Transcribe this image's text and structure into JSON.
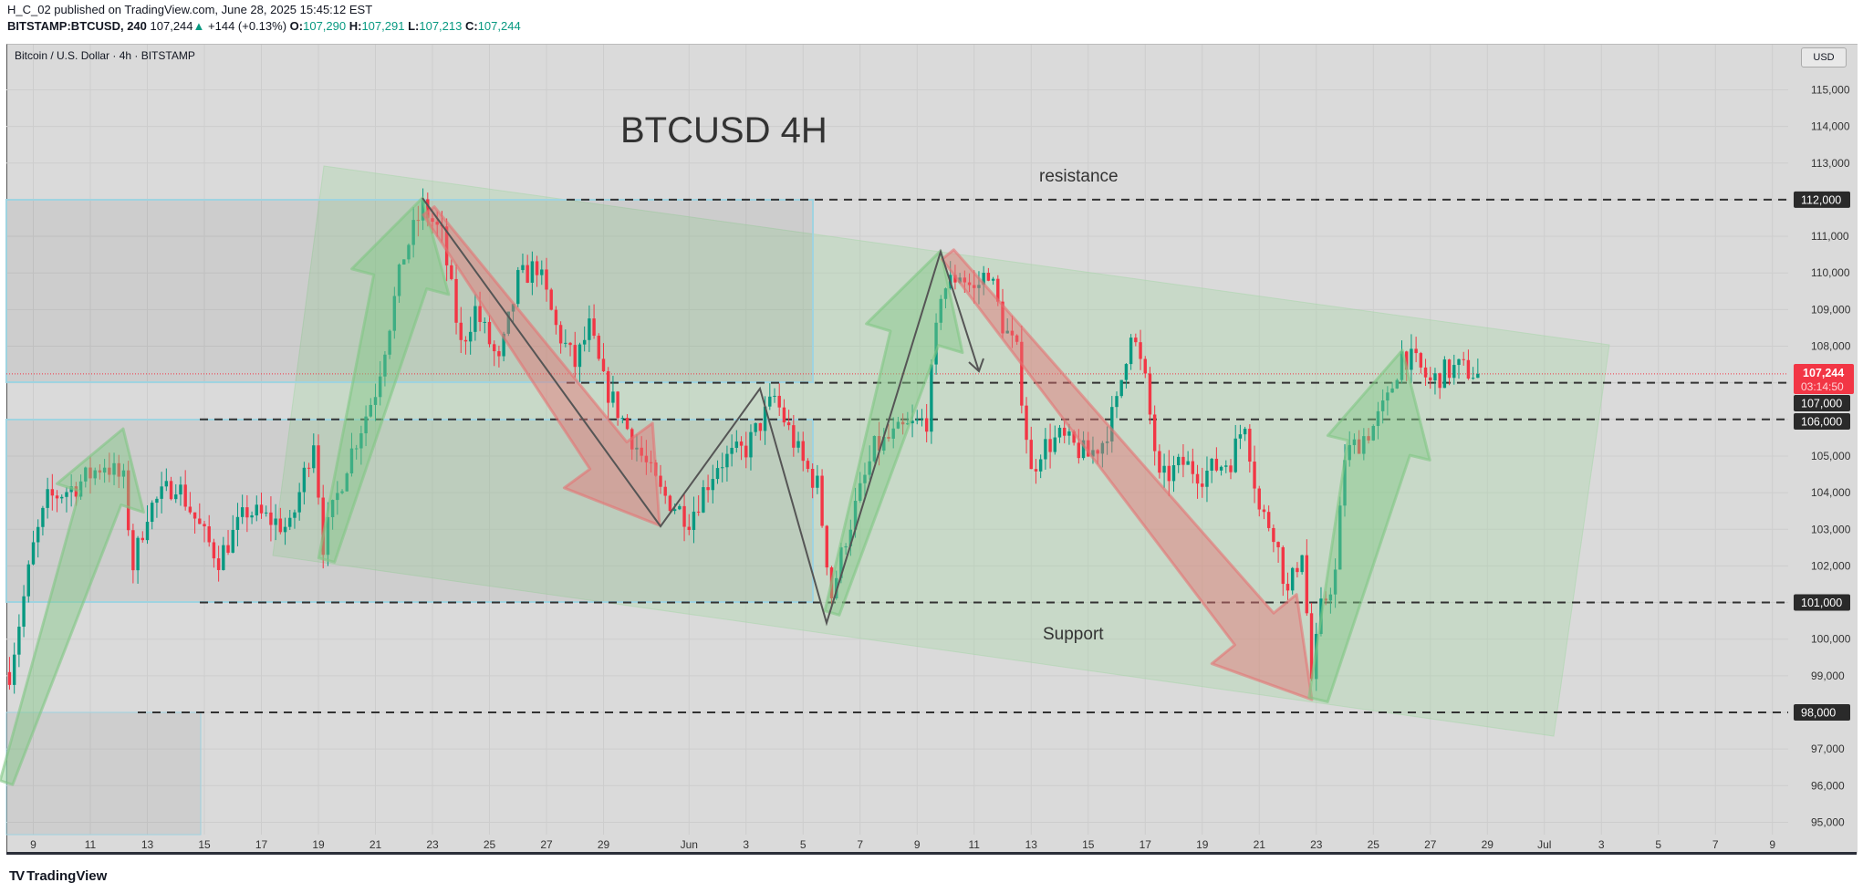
{
  "header": {
    "publisher_line": "H_C_02 published on TradingView.com, June 28, 2025 15:45:12 EST",
    "symbol": "BITSTAMP:BTCUSD, 240",
    "price": "107,244",
    "change": "+144 (+0.13%)",
    "o_label": "O:",
    "o": "107,290",
    "h_label": "H:",
    "h": "107,291",
    "l_label": "L:",
    "l": "107,213",
    "c_label": "C:",
    "c": "107,244"
  },
  "chart": {
    "legend_title": "Bitcoin / U.S. Dollar · 4h · BITSTAMP",
    "annotation_title": "BTCUSD 4H",
    "resistance_label": "resistance",
    "support_label": "Support",
    "currency_button": "USD",
    "current_price": "107,244",
    "countdown": "03:14:50"
  },
  "price_axis": {
    "ticks": [
      "115,000",
      "114,000",
      "113,000",
      "112,000",
      "111,000",
      "110,000",
      "109,000",
      "108,000",
      "107,000",
      "106,000",
      "105,000",
      "104,000",
      "103,000",
      "102,000",
      "101,000",
      "100,000",
      "99,000",
      "98,000",
      "97,000",
      "96,000",
      "95,000"
    ],
    "level_labels": [
      "112,000",
      "107,000",
      "106,000",
      "101,000",
      "98,000"
    ]
  },
  "time_axis": [
    {
      "label": "9",
      "date": "2025-05-09"
    },
    {
      "label": "11",
      "date": "2025-05-11"
    },
    {
      "label": "13",
      "date": "2025-05-13"
    },
    {
      "label": "15",
      "date": "2025-05-15"
    },
    {
      "label": "17",
      "date": "2025-05-17"
    },
    {
      "label": "19",
      "date": "2025-05-19"
    },
    {
      "label": "21",
      "date": "2025-05-21"
    },
    {
      "label": "23",
      "date": "2025-05-23"
    },
    {
      "label": "25",
      "date": "2025-05-25"
    },
    {
      "label": "27",
      "date": "2025-05-27"
    },
    {
      "label": "29",
      "date": "2025-05-29"
    },
    {
      "label": "Jun",
      "date": "2025-06-01"
    },
    {
      "label": "3",
      "date": "2025-06-03"
    },
    {
      "label": "5",
      "date": "2025-06-05"
    },
    {
      "label": "7",
      "date": "2025-06-07"
    },
    {
      "label": "9",
      "date": "2025-06-09"
    },
    {
      "label": "11",
      "date": "2025-06-11"
    },
    {
      "label": "13",
      "date": "2025-06-13"
    },
    {
      "label": "15",
      "date": "2025-06-15"
    },
    {
      "label": "17",
      "date": "2025-06-17"
    },
    {
      "label": "19",
      "date": "2025-06-19"
    },
    {
      "label": "21",
      "date": "2025-06-21"
    },
    {
      "label": "23",
      "date": "2025-06-23"
    },
    {
      "label": "25",
      "date": "2025-06-25"
    },
    {
      "label": "27",
      "date": "2025-06-27"
    },
    {
      "label": "29",
      "date": "2025-06-29"
    },
    {
      "label": "Jul",
      "date": "2025-07-01"
    },
    {
      "label": "3",
      "date": "2025-07-03"
    },
    {
      "label": "5",
      "date": "2025-07-05"
    },
    {
      "label": "7",
      "date": "2025-07-07"
    },
    {
      "label": "9",
      "date": "2025-07-09"
    }
  ],
  "colors": {
    "up": "#089981",
    "down": "#f23645",
    "background": "#dadada",
    "level_label_bg": "#2a2a2a",
    "channel": "#a5d6a7",
    "up_arrow": "#81c784",
    "down_arrow": "#e57373"
  },
  "footer": {
    "logo_mark": "TV",
    "logo_text": "TradingView"
  },
  "chart_data": {
    "type": "candlestick",
    "interval": "4h",
    "ylim": [
      95000,
      115000
    ],
    "current_price": 107244,
    "levels": [
      112000,
      107000,
      106000,
      101000,
      98000
    ],
    "price_path": [
      [
        "2025-05-08T04",
        99100
      ],
      [
        "2025-05-09T00",
        102500
      ],
      [
        "2025-05-09T12",
        103800
      ],
      [
        "2025-05-10T12",
        104200
      ],
      [
        "2025-05-11T12",
        104800
      ],
      [
        "2025-05-12T04",
        104300
      ],
      [
        "2025-05-12T12",
        102000
      ],
      [
        "2025-05-13T00",
        103500
      ],
      [
        "2025-05-14T00",
        104300
      ],
      [
        "2025-05-15T00",
        102800
      ],
      [
        "2025-05-15T12",
        102200
      ],
      [
        "2025-05-16T12",
        103500
      ],
      [
        "2025-05-17T12",
        103200
      ],
      [
        "2025-05-18T00",
        103000
      ],
      [
        "2025-05-18T20",
        105500
      ],
      [
        "2025-05-19T04",
        102600
      ],
      [
        "2025-05-20T00",
        104800
      ],
      [
        "2025-05-21T00",
        106800
      ],
      [
        "2025-05-22T00",
        110500
      ],
      [
        "2025-05-22T16",
        111800
      ],
      [
        "2025-05-23T08",
        111000
      ],
      [
        "2025-05-24T00",
        108000
      ],
      [
        "2025-05-24T12",
        109000
      ],
      [
        "2025-05-25T08",
        107500
      ],
      [
        "2025-05-26T00",
        109800
      ],
      [
        "2025-05-26T16",
        110200
      ],
      [
        "2025-05-27T08",
        108500
      ],
      [
        "2025-05-28T00",
        107500
      ],
      [
        "2025-05-28T12",
        108500
      ],
      [
        "2025-05-29T00",
        107000
      ],
      [
        "2025-05-30T00",
        105500
      ],
      [
        "2025-05-31T00",
        104000
      ],
      [
        "2025-06-01T00",
        103300
      ],
      [
        "2025-06-02T00",
        104800
      ],
      [
        "2025-06-03T00",
        105200
      ],
      [
        "2025-06-04T00",
        106600
      ],
      [
        "2025-06-05T00",
        104800
      ],
      [
        "2025-06-05T12",
        104200
      ],
      [
        "2025-06-06T00",
        101200
      ],
      [
        "2025-06-06T12",
        102800
      ],
      [
        "2025-06-07T12",
        105200
      ],
      [
        "2025-06-08T12",
        105700
      ],
      [
        "2025-06-09T08",
        106000
      ],
      [
        "2025-06-09T20",
        109500
      ],
      [
        "2025-06-10T12",
        110000
      ],
      [
        "2025-06-11T00",
        109500
      ],
      [
        "2025-06-11T12",
        110100
      ],
      [
        "2025-06-12T00",
        108600
      ],
      [
        "2025-06-12T12",
        107800
      ],
      [
        "2025-06-13T00",
        104500
      ],
      [
        "2025-06-13T08",
        105200
      ],
      [
        "2025-06-14T00",
        105500
      ],
      [
        "2025-06-15T00",
        105000
      ],
      [
        "2025-06-15T12",
        105400
      ],
      [
        "2025-06-16T00",
        106400
      ],
      [
        "2025-06-16T12",
        108500
      ],
      [
        "2025-06-17T00",
        107000
      ],
      [
        "2025-06-17T12",
        104300
      ],
      [
        "2025-06-18T08",
        104800
      ],
      [
        "2025-06-19T00",
        104500
      ],
      [
        "2025-06-20T00",
        104900
      ],
      [
        "2025-06-20T12",
        106000
      ],
      [
        "2025-06-21T00",
        103500
      ],
      [
        "2025-06-21T12",
        103000
      ],
      [
        "2025-06-22T00",
        101200
      ],
      [
        "2025-06-22T12",
        102500
      ],
      [
        "2025-06-22T20",
        98900
      ],
      [
        "2025-06-23T04",
        100800
      ],
      [
        "2025-06-23T16",
        101800
      ],
      [
        "2025-06-24T00",
        105000
      ],
      [
        "2025-06-25T00",
        105800
      ],
      [
        "2025-06-25T12",
        106500
      ],
      [
        "2025-06-26T00",
        107800
      ],
      [
        "2025-06-26T12",
        107500
      ],
      [
        "2025-06-27T00",
        107000
      ],
      [
        "2025-06-27T12",
        107300
      ],
      [
        "2025-06-28T00",
        107400
      ],
      [
        "2025-06-28T16",
        107244
      ]
    ]
  }
}
